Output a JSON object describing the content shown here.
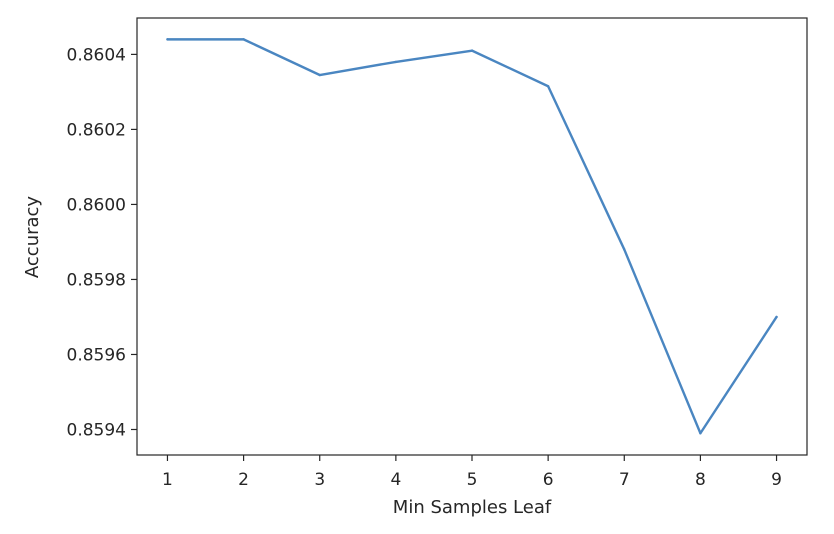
{
  "chart_data": {
    "type": "line",
    "xlabel": "Min Samples Leaf",
    "ylabel": "Accuracy",
    "x": [
      1,
      2,
      3,
      4,
      5,
      6,
      7,
      8,
      9
    ],
    "series": [
      {
        "values": [
          0.86044,
          0.86044,
          0.860345,
          0.86038,
          0.86041,
          0.860315,
          0.85988,
          0.85939,
          0.8597
        ],
        "color": "#4a86c1"
      }
    ],
    "xticks": [
      "1",
      "2",
      "3",
      "4",
      "5",
      "6",
      "7",
      "8",
      "9"
    ],
    "yticks": [
      "0.8594",
      "0.8596",
      "0.8598",
      "0.8600",
      "0.8602",
      "0.8604"
    ],
    "xlim": [
      0.6,
      9.4
    ],
    "ylim": [
      0.859332,
      0.860497
    ],
    "grid": false,
    "legend": false
  }
}
